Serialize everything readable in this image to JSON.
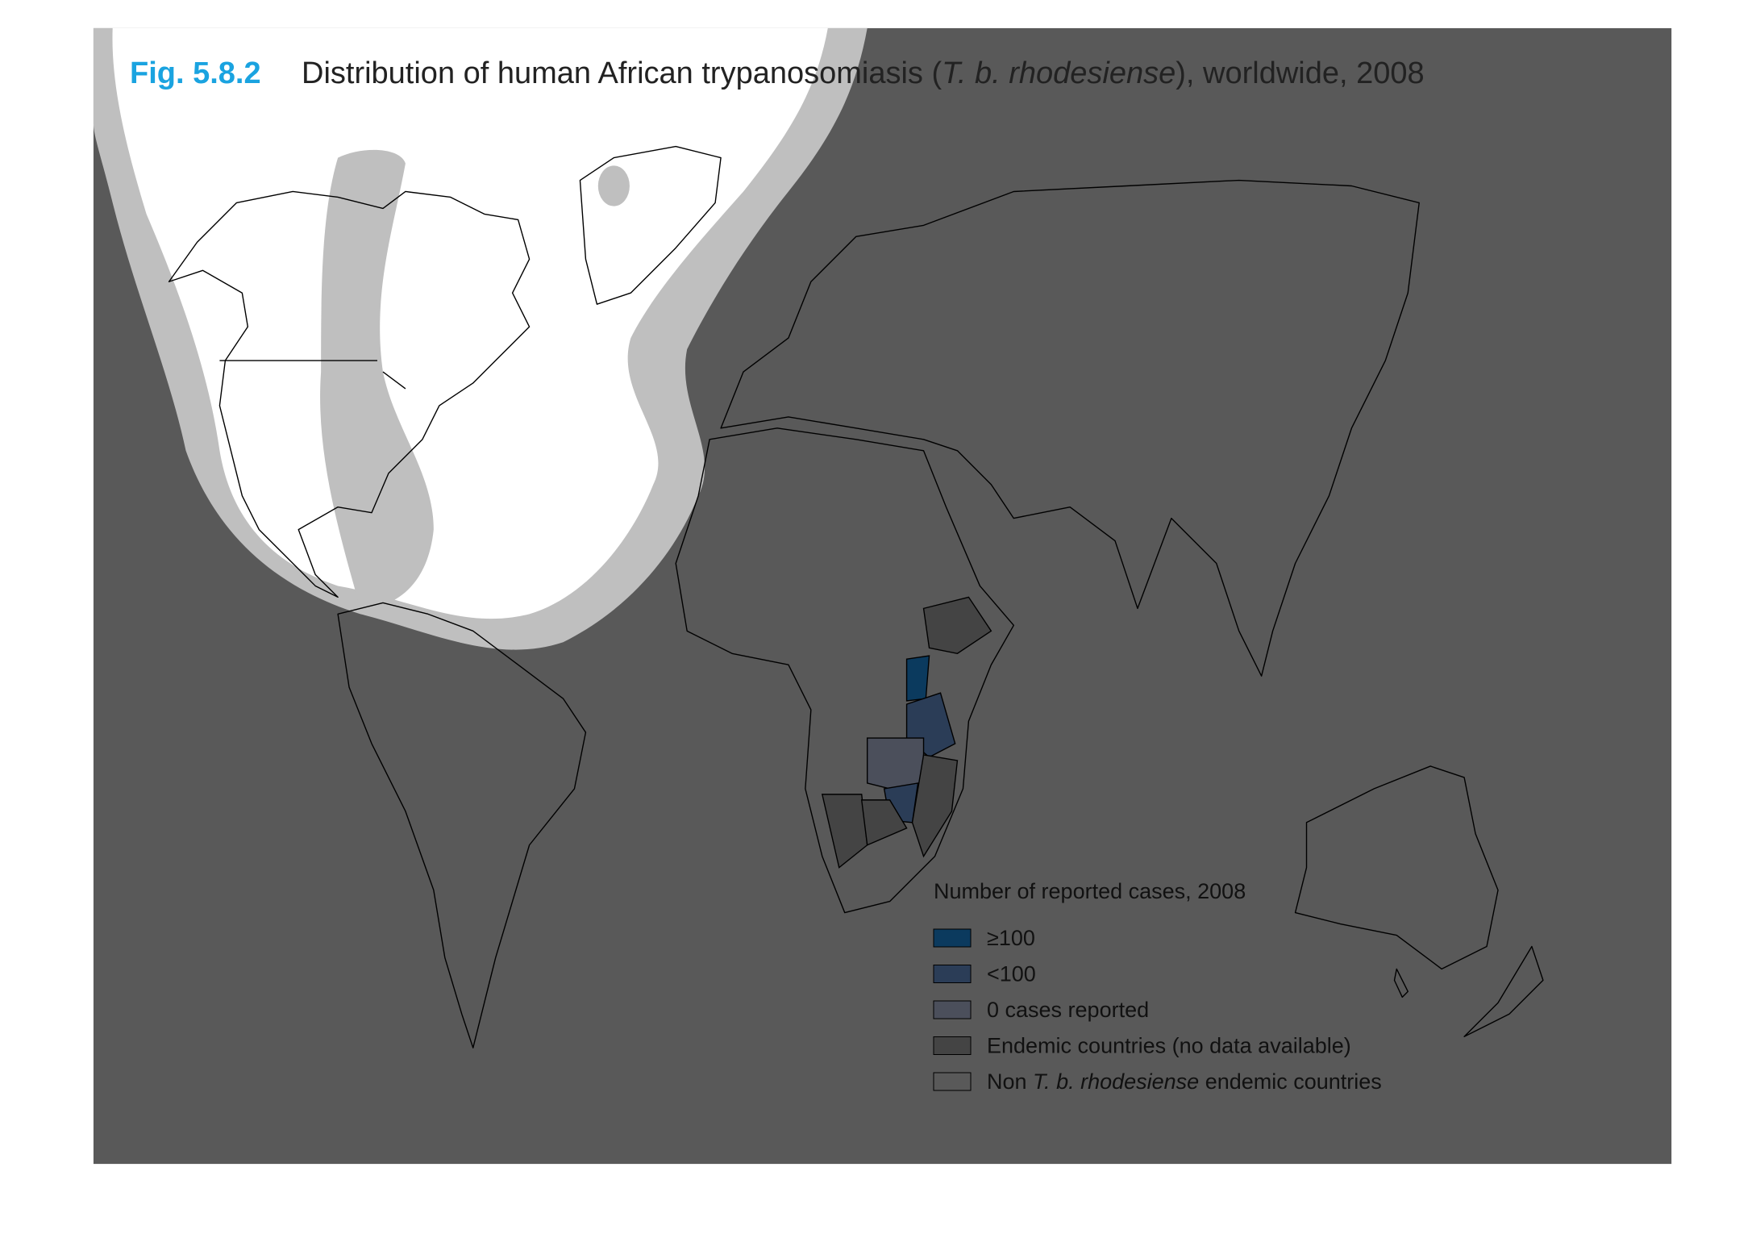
{
  "header": {
    "figure": "Fig. 5.8.2",
    "title_parts": [
      "Distribution of human African trypanosomiasis (",
      "T. b. rhodesiense",
      "), worldwide, 2008"
    ]
  },
  "legend": {
    "title": "Number of reported cases, 2008",
    "items": [
      {
        "label_parts": [
          "≥100"
        ],
        "color": "#0b3a5e"
      },
      {
        "label_parts": [
          "<100"
        ],
        "color": "#2b3d57"
      },
      {
        "label_parts": [
          "0 cases reported"
        ],
        "color": "#4b4f5b"
      },
      {
        "label_parts": [
          "Endemic countries (no data available)"
        ],
        "color": "#444444"
      },
      {
        "label_parts": [
          "Non ",
          "T. b. rhodesiense",
          " endemic countries"
        ],
        "color": "#595959"
      }
    ]
  }
}
